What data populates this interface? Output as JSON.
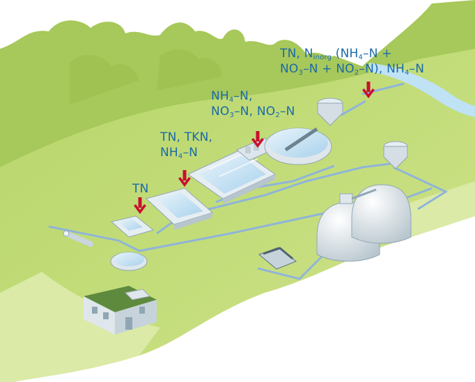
{
  "colors": {
    "label_text": "#1a6aa8",
    "arrow": "#c8102e",
    "ground": "#c2dc74",
    "ground_edge": "#dbeaa6",
    "trees": "#a7c85a",
    "river": "#bfe2f5",
    "pipe": "#8fb4d9",
    "equipment": "#e6eef3",
    "water": "#cfe6f5"
  },
  "icons": [
    "tree-line",
    "river",
    "building",
    "inlet-pipe",
    "screen-tank",
    "grit-chamber",
    "primary-clarifier",
    "aeration-tank",
    "biofilter",
    "secondary-clarifier",
    "sludge-thickener",
    "digester",
    "dewatering-press"
  ],
  "labels": {
    "p1": {
      "a": "TN"
    },
    "p2": {
      "line1": "TN, TKN,",
      "line2_a": "NH",
      "line2_s": "4",
      "line2_b": "–N"
    },
    "p3": {
      "line1_a": "NH",
      "line1_s": "4",
      "line1_b": "–N,",
      "line2_a": "NO",
      "line2_s1": "3",
      "line2_b": "–N, NO",
      "line2_s2": "2",
      "line2_c": "–N"
    },
    "p4": {
      "line1_a": "TN, N",
      "line1_s": "inorg",
      "line1_b": " (NH",
      "line1_s2": "4",
      "line1_c": "–N +",
      "line2_a": "NO",
      "line2_s1": "3",
      "line2_b": "–N + NO",
      "line2_s2": "2",
      "line2_c": "–N), NH",
      "line2_s3": "4",
      "line2_d": "–N"
    }
  }
}
